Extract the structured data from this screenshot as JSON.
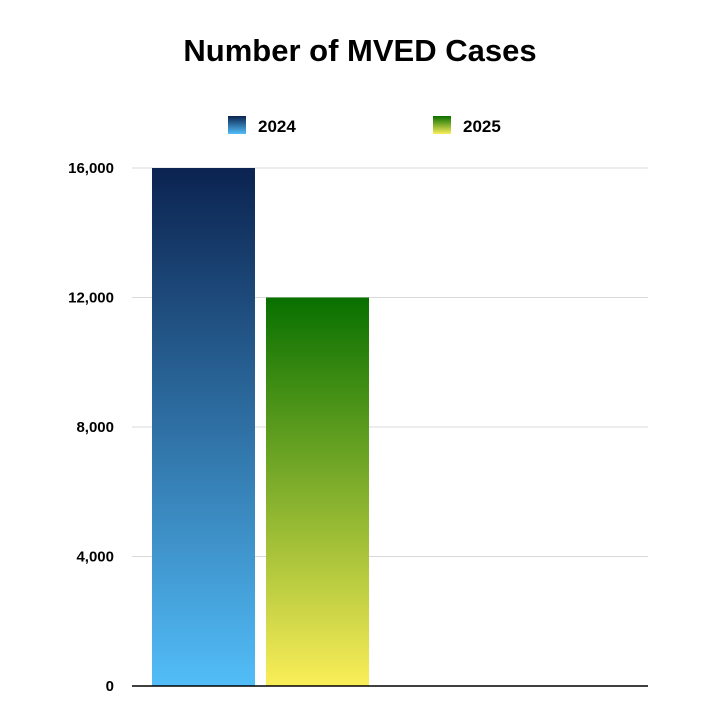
{
  "chart_data": {
    "type": "bar",
    "title": "Number of MVED Cases",
    "xlabel": "",
    "ylabel": "",
    "categories": [
      ""
    ],
    "series": [
      {
        "name": "2024",
        "values": [
          16000
        ]
      },
      {
        "name": "2025",
        "values": [
          12000
        ]
      }
    ],
    "ylim": [
      0,
      16000
    ],
    "yticks": [
      0,
      4000,
      8000,
      12000,
      16000
    ],
    "ytick_labels": [
      "0",
      "4,000",
      "8,000",
      "12,000",
      "16,000"
    ],
    "grid": true,
    "legend_position": "top"
  },
  "colors": {
    "series_2024_top": "#0b2350",
    "series_2024_bottom": "#52bdf8",
    "series_2025_top": "#087000",
    "series_2025_bottom": "#fbee58",
    "gridline": "#d9d9d9",
    "axis": "#000000"
  }
}
